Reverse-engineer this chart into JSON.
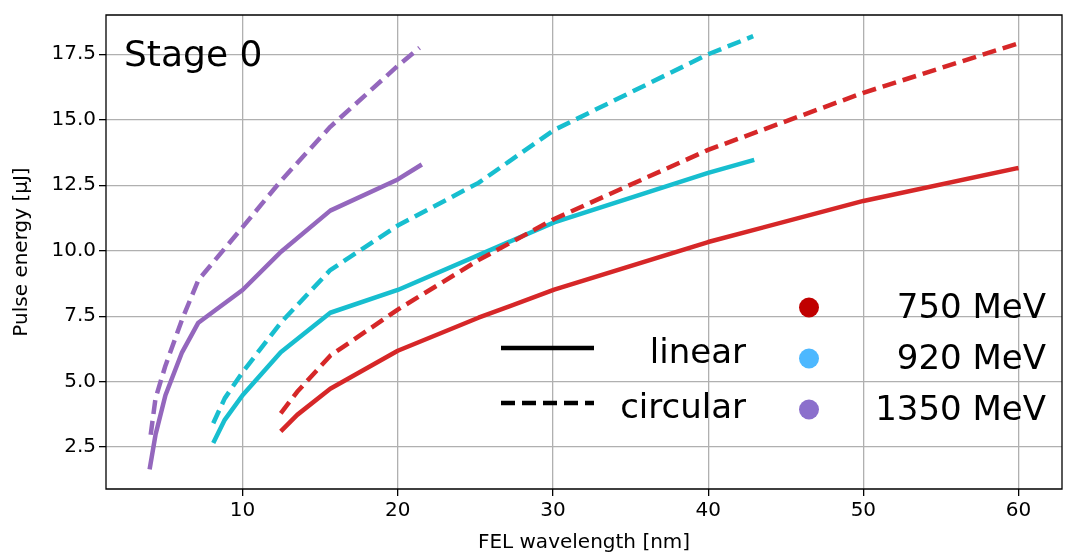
{
  "chart_data": {
    "type": "line",
    "xlabel": "FEL wavelength [nm]",
    "ylabel": "Pulse energy [μJ]",
    "annotations": [
      "Stage 0"
    ],
    "xlim": [
      1.2,
      62.8
    ],
    "xticks": [
      10,
      20,
      30,
      40,
      50,
      60
    ],
    "ylim": [
      0.9,
      19.0
    ],
    "yticks": [
      2.5,
      {
        "value": 5,
        "label": "5.0"
      },
      7.5,
      {
        "value": 10,
        "label": "10.0"
      },
      12.5,
      {
        "value": 15,
        "label": "15.0"
      },
      17.5
    ],
    "grid": true,
    "legend": "bottom right",
    "series": [
      {
        "color": "#d62728",
        "line_style": "solid",
        "x": [
          12.46,
          13.52,
          15.65,
          20,
          25.2,
          30.08,
          40,
          50,
          60
        ],
        "values": [
          3.1,
          3.73,
          4.73,
          6.18,
          7.44,
          8.51,
          10.33,
          11.9,
          13.16
        ]
      },
      {
        "color": "#d62728",
        "line_style": "dashed",
        "x": [
          12.46,
          13.52,
          15.65,
          20,
          25.2,
          30.08,
          40,
          50,
          60
        ],
        "values": [
          3.79,
          4.61,
          5.99,
          7.75,
          9.64,
          11.21,
          13.85,
          16.03,
          17.92
        ]
      },
      {
        "color": "#17becf",
        "line_style": "solid",
        "x": [
          8.11,
          8.85,
          10,
          12.46,
          15.65,
          20,
          25.2,
          30.08,
          40,
          42.97
        ],
        "values": [
          2.66,
          3.54,
          4.48,
          6.12,
          7.63,
          8.5,
          9.83,
          11.08,
          12.97,
          13.47
        ]
      },
      {
        "color": "#17becf",
        "line_style": "dashed",
        "x": [
          8.11,
          8.85,
          10,
          12.46,
          15.65,
          20,
          25.2,
          30.08,
          40,
          42.9
        ],
        "values": [
          3.41,
          4.36,
          5.36,
          7.25,
          9.26,
          10.96,
          12.59,
          14.61,
          17.5,
          18.19
        ]
      },
      {
        "color": "#9467bd",
        "line_style": "solid",
        "x": [
          4.01,
          4.39,
          5.03,
          6.1,
          7.15,
          10,
          12.46,
          15.65,
          20,
          21.55
        ],
        "values": [
          1.65,
          2.97,
          4.48,
          6.12,
          7.25,
          8.5,
          9.95,
          11.53,
          12.72,
          13.29
        ]
      },
      {
        "color": "#9467bd",
        "line_style": "dashed",
        "x": [
          4.08,
          4.39,
          5.03,
          6.1,
          7.15,
          10,
          12.46,
          15.65,
          20,
          21.4
        ],
        "values": [
          2.97,
          4.36,
          5.61,
          7.37,
          8.88,
          10.9,
          12.66,
          14.73,
          17.06,
          17.75
        ]
      },
      {
        "name": "linear",
        "color": "#000000",
        "line_style": "solid"
      },
      {
        "name": "circular",
        "color": "#000000",
        "line_style": "dashed"
      },
      {
        "name": "750 MeV",
        "type": "scatter",
        "marker": "circle",
        "color": "#c00000"
      },
      {
        "name": "920 MeV",
        "type": "scatter",
        "marker": "circle",
        "color": "#4db8ff"
      },
      {
        "name": "1350 MeV",
        "type": "scatter",
        "marker": "circle",
        "color": "#8b6fcc"
      }
    ]
  }
}
